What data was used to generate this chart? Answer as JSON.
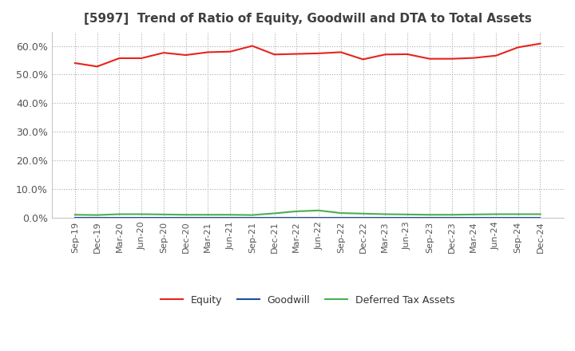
{
  "title": "[5997]  Trend of Ratio of Equity, Goodwill and DTA to Total Assets",
  "x_labels": [
    "Sep-19",
    "Dec-19",
    "Mar-20",
    "Jun-20",
    "Sep-20",
    "Dec-20",
    "Mar-21",
    "Jun-21",
    "Sep-21",
    "Dec-21",
    "Mar-22",
    "Jun-22",
    "Sep-22",
    "Dec-22",
    "Mar-23",
    "Jun-23",
    "Sep-23",
    "Dec-23",
    "Mar-24",
    "Jun-24",
    "Sep-24",
    "Dec-24"
  ],
  "equity": [
    0.54,
    0.528,
    0.557,
    0.557,
    0.576,
    0.568,
    0.578,
    0.58,
    0.6,
    0.57,
    0.572,
    0.574,
    0.578,
    0.553,
    0.57,
    0.571,
    0.555,
    0.555,
    0.558,
    0.566,
    0.595,
    0.608
  ],
  "goodwill": [
    0.0,
    0.0,
    0.0,
    0.0,
    0.0,
    0.0,
    0.0,
    0.0,
    0.0,
    0.0,
    0.0,
    0.0,
    0.0,
    0.0,
    0.0,
    0.0,
    0.0,
    0.0,
    0.0,
    0.0,
    0.0,
    0.0
  ],
  "dta": [
    0.01,
    0.009,
    0.012,
    0.012,
    0.011,
    0.01,
    0.01,
    0.01,
    0.009,
    0.015,
    0.022,
    0.025,
    0.016,
    0.014,
    0.012,
    0.011,
    0.01,
    0.01,
    0.011,
    0.012,
    0.012,
    0.012
  ],
  "equity_color": "#e8231e",
  "goodwill_color": "#1f4e9c",
  "dta_color": "#4caf4f",
  "background_color": "#ffffff",
  "plot_bg_color": "#ffffff",
  "grid_color": "#aaaaaa",
  "title_color": "#404040",
  "ylim": [
    0.0,
    0.65
  ],
  "yticks": [
    0.0,
    0.1,
    0.2,
    0.3,
    0.4,
    0.5,
    0.6
  ],
  "legend_labels": [
    "Equity",
    "Goodwill",
    "Deferred Tax Assets"
  ]
}
